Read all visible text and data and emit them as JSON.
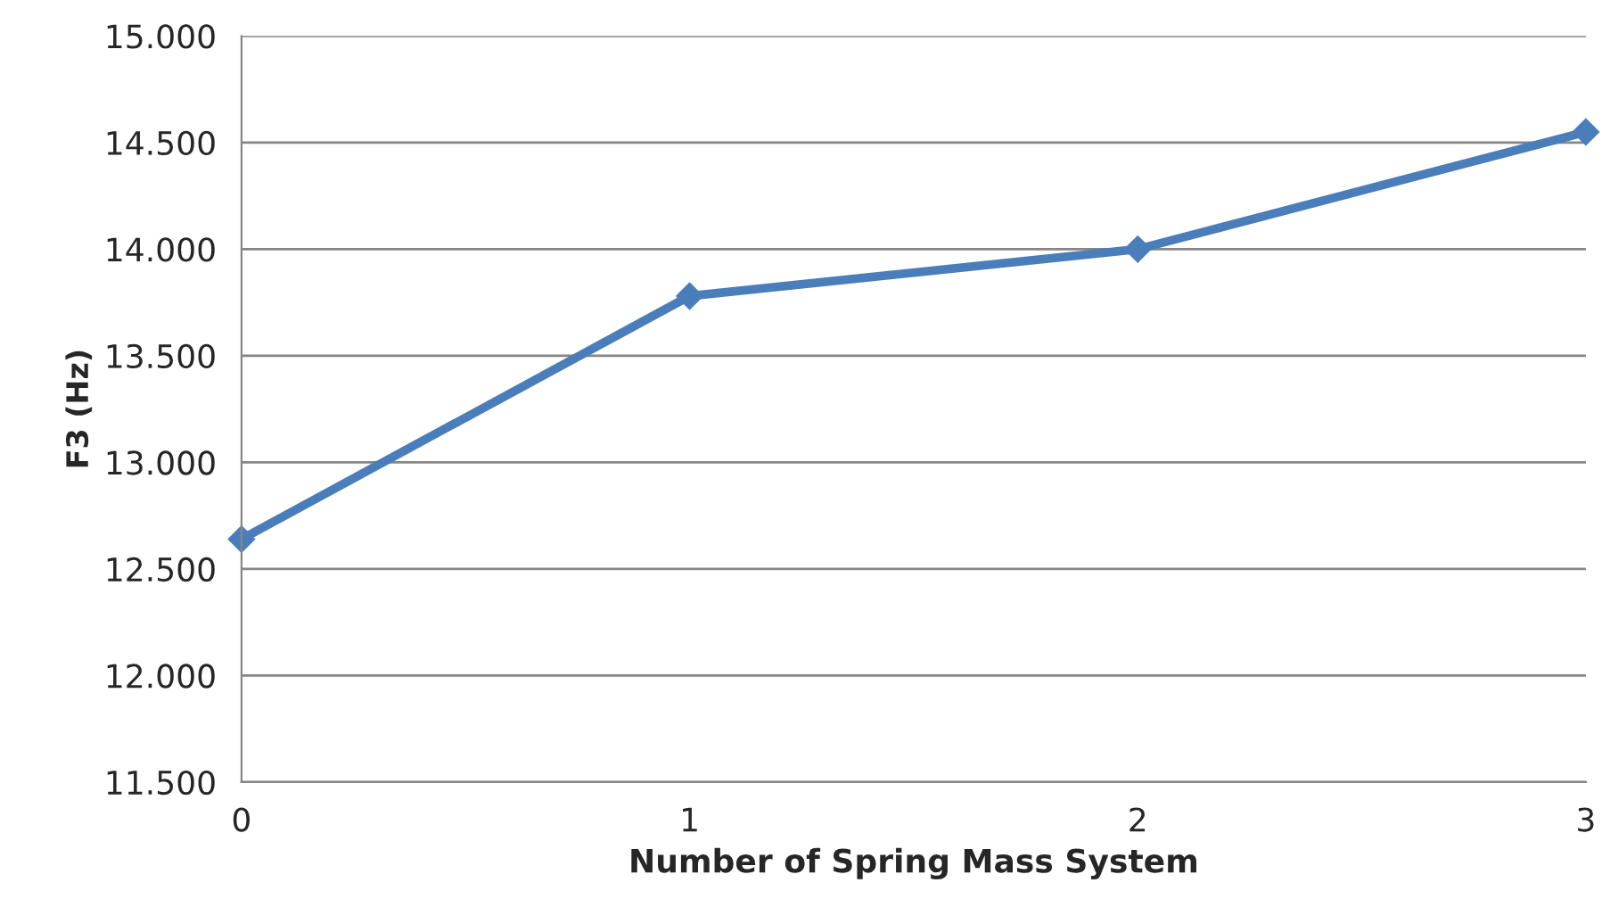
{
  "chart_data": {
    "type": "line",
    "xlabel": "Number of Spring Mass System",
    "ylabel": "F3 (Hz)",
    "x": [
      0,
      1,
      2,
      3
    ],
    "series": [
      {
        "color": "#4a7ebb",
        "values": [
          12640,
          13780,
          14000,
          14550
        ]
      }
    ],
    "xlim": [
      0,
      3
    ],
    "xticks": [
      0,
      1,
      2,
      3
    ],
    "ylim": [
      11500,
      15000
    ],
    "yticks": [
      {
        "value": 11500,
        "label": "11.500"
      },
      {
        "value": 12000,
        "label": "12.000"
      },
      {
        "value": 12500,
        "label": "12.500"
      },
      {
        "value": 13000,
        "label": "13.000"
      },
      {
        "value": 13500,
        "label": "13.500"
      },
      {
        "value": 14000,
        "label": "14.000"
      },
      {
        "value": 14500,
        "label": "14.500"
      },
      {
        "value": 15000,
        "label": "15.000"
      }
    ],
    "grid": "y",
    "marker": "diamond",
    "line_style": "solid"
  }
}
